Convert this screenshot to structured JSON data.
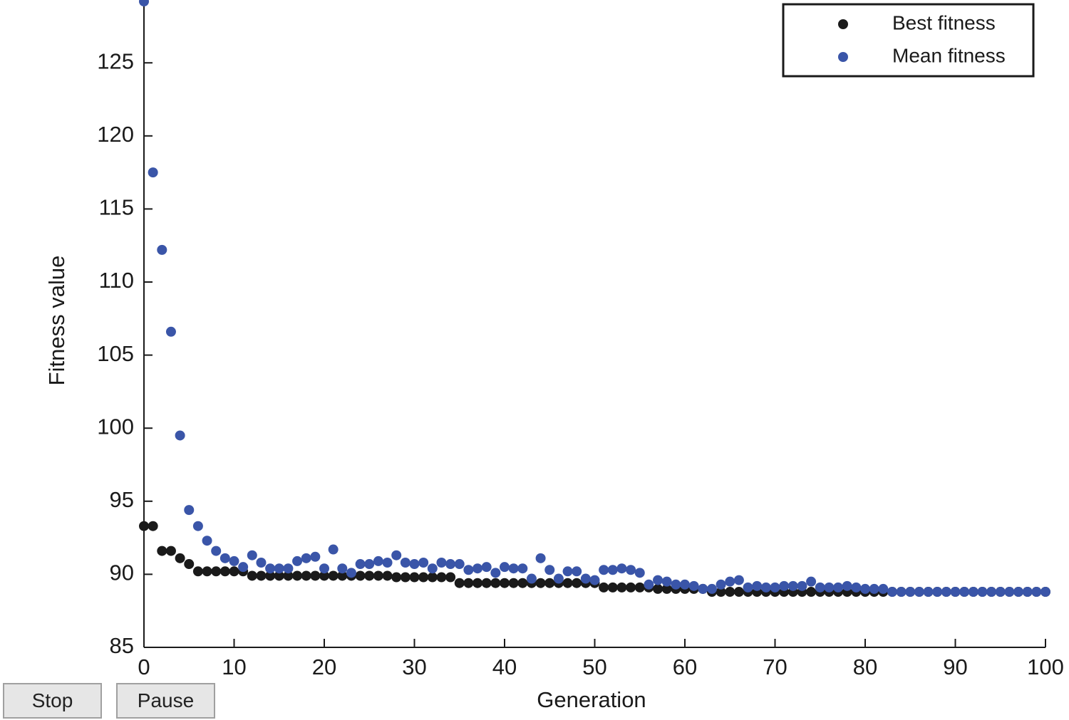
{
  "chart_data": {
    "type": "scatter",
    "xlabel": "Generation",
    "ylabel": "Fitness value",
    "x": [
      0,
      1,
      2,
      3,
      4,
      5,
      6,
      7,
      8,
      9,
      10,
      11,
      12,
      13,
      14,
      15,
      16,
      17,
      18,
      19,
      20,
      21,
      22,
      23,
      24,
      25,
      26,
      27,
      28,
      29,
      30,
      31,
      32,
      33,
      34,
      35,
      36,
      37,
      38,
      39,
      40,
      41,
      42,
      43,
      44,
      45,
      46,
      47,
      48,
      49,
      50,
      51,
      52,
      53,
      54,
      55,
      56,
      57,
      58,
      59,
      60,
      61,
      62,
      63,
      64,
      65,
      66,
      67,
      68,
      69,
      70,
      71,
      72,
      73,
      74,
      75,
      76,
      77,
      78,
      79,
      80,
      81,
      82,
      83,
      84,
      85,
      86,
      87,
      88,
      89,
      90,
      91,
      92,
      93,
      94,
      95,
      96,
      97,
      98,
      99,
      100
    ],
    "series": [
      {
        "name": "Best fitness",
        "color": "#1a1a1a",
        "values": [
          93.3,
          93.3,
          91.6,
          91.6,
          91.1,
          90.7,
          90.2,
          90.2,
          90.2,
          90.2,
          90.2,
          90.2,
          89.9,
          89.9,
          89.9,
          89.9,
          89.9,
          89.9,
          89.9,
          89.9,
          89.9,
          89.9,
          89.9,
          89.9,
          89.9,
          89.9,
          89.9,
          89.9,
          89.8,
          89.8,
          89.8,
          89.8,
          89.8,
          89.8,
          89.8,
          89.4,
          89.4,
          89.4,
          89.4,
          89.4,
          89.4,
          89.4,
          89.4,
          89.4,
          89.4,
          89.4,
          89.4,
          89.4,
          89.4,
          89.4,
          89.4,
          89.1,
          89.1,
          89.1,
          89.1,
          89.1,
          89.1,
          89.0,
          89.0,
          89.0,
          89.0,
          89.0,
          89.0,
          88.8,
          88.8,
          88.8,
          88.8,
          88.8,
          88.8,
          88.8,
          88.8,
          88.8,
          88.8,
          88.8,
          88.8,
          88.8,
          88.8,
          88.8,
          88.8,
          88.8,
          88.8,
          88.8,
          88.8,
          88.8,
          88.8,
          88.8,
          88.8,
          88.8,
          88.8,
          88.8,
          88.8,
          88.8,
          88.8,
          88.8,
          88.8,
          88.8,
          88.8,
          88.8,
          88.8,
          88.8,
          88.8
        ]
      },
      {
        "name": "Mean fitness",
        "color": "#3a55a8",
        "values": [
          129.2,
          117.5,
          112.2,
          106.6,
          99.5,
          94.4,
          93.3,
          92.3,
          91.6,
          91.1,
          90.9,
          90.5,
          91.3,
          90.8,
          90.4,
          90.4,
          90.4,
          90.9,
          91.1,
          91.2,
          90.4,
          91.7,
          90.4,
          90.1,
          90.7,
          90.7,
          90.9,
          90.8,
          91.3,
          90.8,
          90.7,
          90.8,
          90.4,
          90.8,
          90.7,
          90.7,
          90.3,
          90.4,
          90.5,
          90.1,
          90.5,
          90.4,
          90.4,
          89.7,
          91.1,
          90.3,
          89.7,
          90.2,
          90.2,
          89.7,
          89.6,
          90.3,
          90.3,
          90.4,
          90.3,
          90.1,
          89.3,
          89.6,
          89.5,
          89.3,
          89.3,
          89.2,
          89.0,
          89.0,
          89.3,
          89.5,
          89.6,
          89.1,
          89.2,
          89.1,
          89.1,
          89.2,
          89.2,
          89.2,
          89.5,
          89.1,
          89.1,
          89.1,
          89.2,
          89.1,
          89.0,
          89.0,
          89.0,
          88.8,
          88.8,
          88.8,
          88.8,
          88.8,
          88.8,
          88.8,
          88.8,
          88.8,
          88.8,
          88.8,
          88.8,
          88.8,
          88.8,
          88.8,
          88.8,
          88.8,
          88.8
        ]
      }
    ],
    "xlim": [
      0,
      100
    ],
    "xticks": [
      0,
      10,
      20,
      30,
      40,
      50,
      60,
      70,
      80,
      90,
      100
    ],
    "ylim": [
      85,
      129.3
    ],
    "yticks": [
      85,
      90,
      95,
      100,
      105,
      110,
      115,
      120,
      125
    ],
    "grid": false,
    "legend": "upper right"
  },
  "controls": {
    "stop": "Stop",
    "pause": "Pause"
  }
}
